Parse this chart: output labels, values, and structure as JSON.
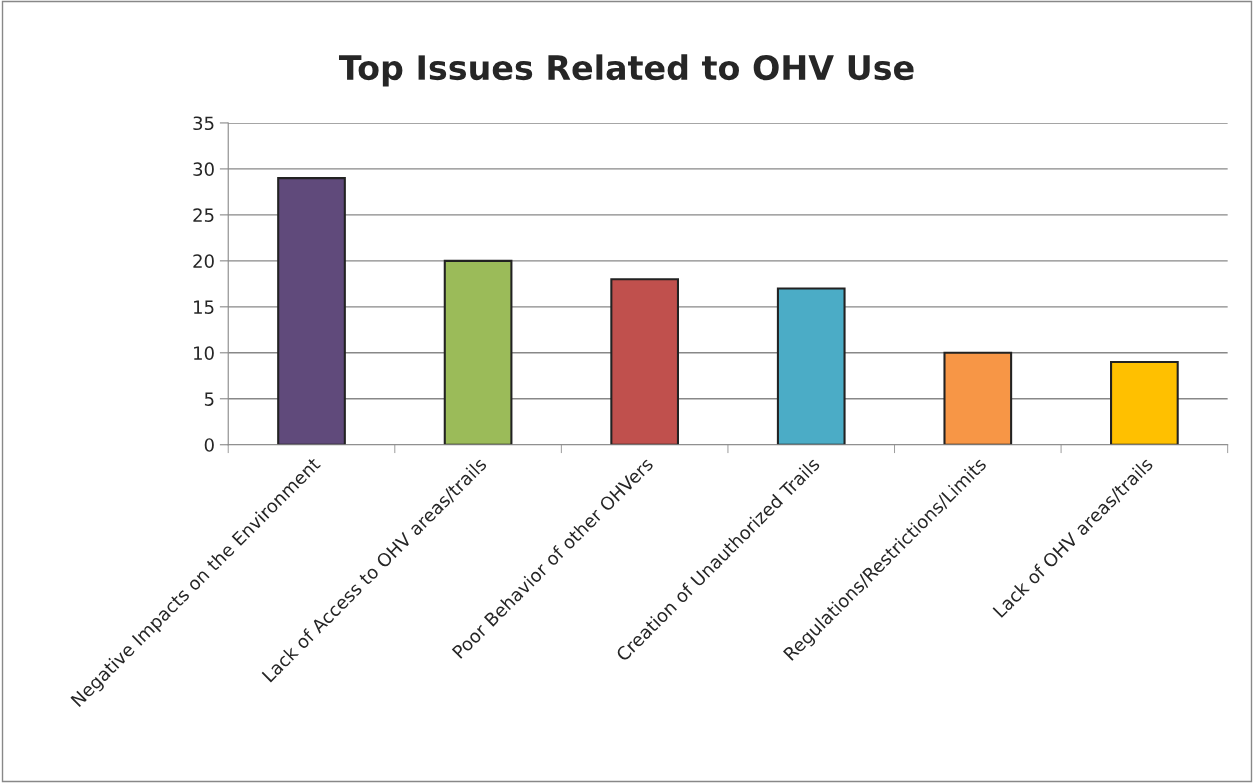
{
  "chart_data": {
    "type": "bar",
    "title": "Top Issues Related to OHV Use",
    "categories": [
      "Negative Impacts on the Environment",
      "Lack of Access to OHV areas/trails",
      "Poor Behavior of other OHVers",
      "Creation of Unauthorized Trails",
      "Regulations/Restrictions/Limits",
      "Lack of OHV areas/trails"
    ],
    "values": [
      29,
      20,
      18,
      17,
      10,
      9
    ],
    "colors": [
      "#604a7b",
      "#9bbb59",
      "#c0504d",
      "#4bacc6",
      "#f79646",
      "#ffc000"
    ],
    "ylim": [
      0,
      35
    ],
    "yticks": [
      0,
      5,
      10,
      15,
      20,
      25,
      30,
      35
    ],
    "grid": "y",
    "legend": false
  }
}
